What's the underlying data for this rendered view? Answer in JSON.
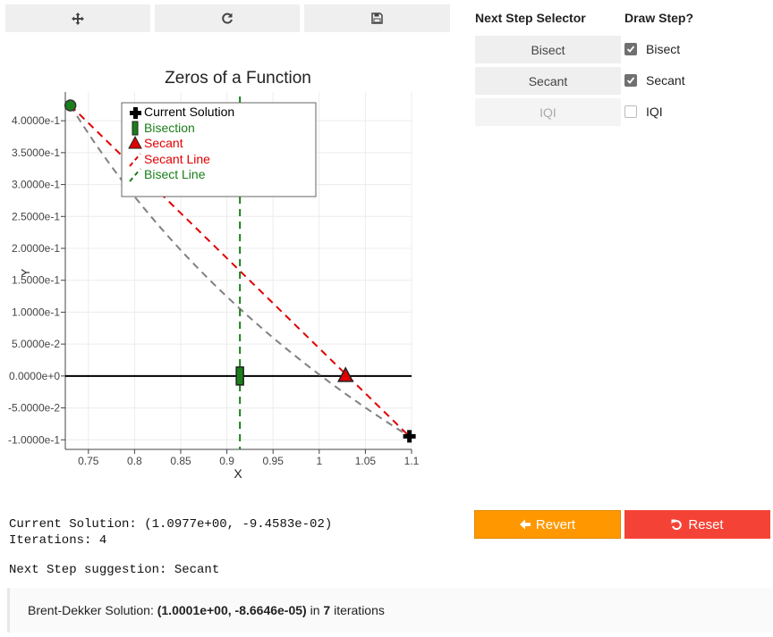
{
  "toolbar": {
    "pan_icon": "move-arrows-icon",
    "reset_view_icon": "refresh-icon",
    "save_icon": "floppy-disk-icon"
  },
  "controls": {
    "next_step_header": "Next Step Selector",
    "draw_step_header": "Draw Step?",
    "steps": [
      {
        "label": "Bisect",
        "enabled": true,
        "draw_label": "Bisect",
        "draw_checked": true
      },
      {
        "label": "Secant",
        "enabled": true,
        "draw_label": "Secant",
        "draw_checked": true
      },
      {
        "label": "IQI",
        "enabled": false,
        "draw_label": "IQI",
        "draw_checked": false
      }
    ]
  },
  "status": {
    "current_solution": "Current Solution: (1.0977e+00, -9.4583e-02)",
    "iterations": "Iterations: 4",
    "next_step": "Next Step suggestion: Secant"
  },
  "actions": {
    "revert_label": "Revert",
    "reset_label": "Reset"
  },
  "brent": {
    "prefix": "Brent-Dekker Solution: ",
    "solution": "(1.0001e+00, -8.6646e-05)",
    "middle": " in ",
    "iterations": "7",
    "suffix": " iterations"
  },
  "colors": {
    "bisect": "#1a7f1a",
    "secant": "#e00000",
    "function_line": "#808080",
    "revert": "#ff9800",
    "reset": "#f44336"
  },
  "chart_data": {
    "type": "line",
    "title": "Zeros of a Function",
    "xlabel": "X",
    "ylabel": "Y",
    "xlim": [
      0.725,
      1.1
    ],
    "ylim": [
      -0.115,
      0.445
    ],
    "x_ticks": [
      0.75,
      0.8,
      0.85,
      0.9,
      0.95,
      1,
      1.05,
      1.1
    ],
    "x_tick_labels": [
      "0.75",
      "0.8",
      "0.85",
      "0.9",
      "0.95",
      "1",
      "1.05",
      "1.1"
    ],
    "y_ticks": [
      -0.1,
      -0.05,
      0,
      0.05,
      0.1,
      0.15,
      0.2,
      0.25,
      0.3,
      0.35,
      0.4
    ],
    "y_tick_labels": [
      "-1.0000e-1",
      "-5.0000e-2",
      "0.0000e+0",
      "5.0000e-2",
      "1.0000e-1",
      "1.5000e-1",
      "2.0000e-1",
      "2.5000e-1",
      "3.0000e-1",
      "3.5000e-1",
      "4.0000e-1"
    ],
    "grid": true,
    "legend_position": "top-left",
    "legend": [
      "Current Solution",
      "Bisection",
      "Secant",
      "Secant Line",
      "Bisect Line"
    ],
    "function_line": {
      "x": [
        0.7305,
        1.0977
      ],
      "y": [
        0.424,
        -0.0946
      ]
    },
    "secant_line": {
      "x": [
        0.7305,
        1.0977
      ],
      "y": [
        0.424,
        -0.0946
      ]
    },
    "endpoint_start": {
      "x": 0.7305,
      "y": 0.424
    },
    "current_solution": {
      "x": 1.0977,
      "y": -0.0946
    },
    "bisection": {
      "x": 0.9141,
      "y": 0
    },
    "secant": {
      "x": 1.0285,
      "y": 0
    },
    "bisect_line_x": 0.9141
  }
}
